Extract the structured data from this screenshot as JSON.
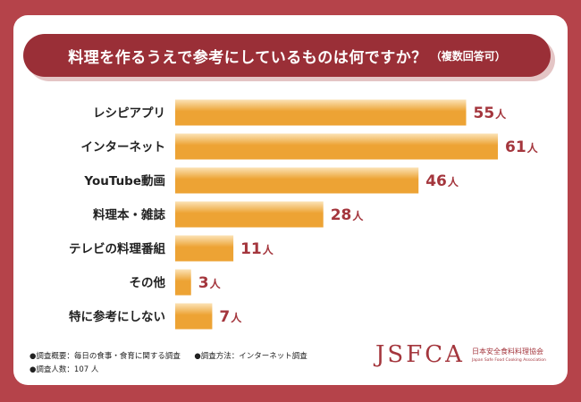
{
  "title": {
    "main": "料理を作るうえで参考にしているものは何ですか？",
    "sub": "（複数回答可）"
  },
  "chart_data": {
    "type": "bar",
    "orientation": "horizontal",
    "categories": [
      "レシピアプリ",
      "インターネット",
      "YouTube動画",
      "料理本・雑誌",
      "テレビの料理番組",
      "その他",
      "特に参考にしない"
    ],
    "values": [
      55,
      61,
      46,
      28,
      11,
      3,
      7
    ],
    "unit": "人",
    "title": "料理を作るうえで参考にしているものは何ですか？（複数回答可）",
    "xlim": [
      0,
      61
    ]
  },
  "notes": {
    "content": "●調査概要：毎日の食事・食育に関する調査",
    "method": "●調査方法：インターネット調査",
    "respondents": "●調査人数：107 人"
  },
  "logo": {
    "mark": "JSFCA",
    "name_jp": "日本安全食料料理協会",
    "name_en": "Japan Safe Food Cooking Association"
  },
  "colors": {
    "frame": "#b5434a",
    "title_bg": "#9a2f37",
    "bar_light": "#fbe3b6",
    "bar_dark": "#eda334",
    "value_text": "#a4363d"
  }
}
